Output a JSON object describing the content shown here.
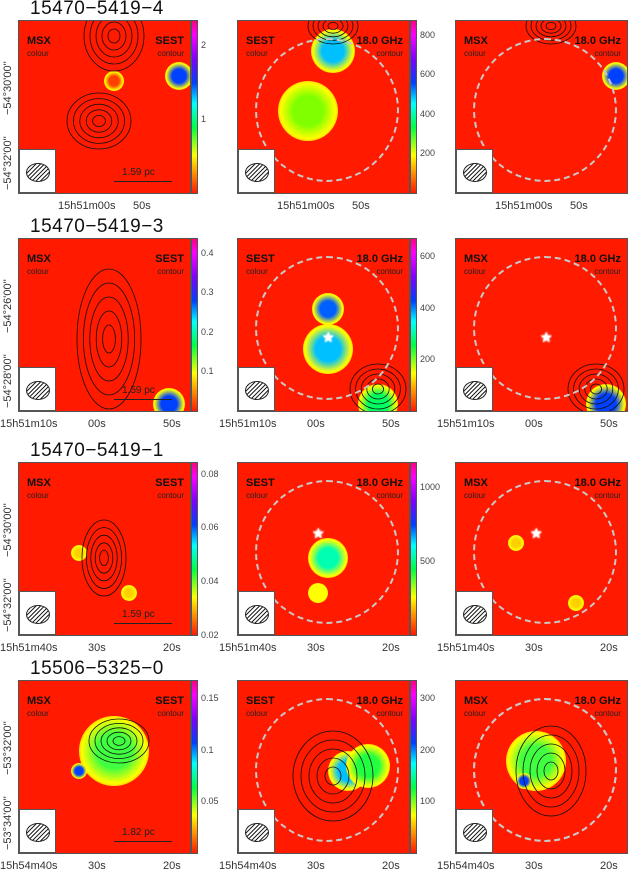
{
  "rows": [
    {
      "title": "15470−5419−4",
      "ra_labels": [
        "15h51m00s",
        "50s"
      ],
      "dec_labels": [
        "−54°30'00''",
        "−54°32'00''"
      ],
      "scale_bar": "1.59 pc",
      "colorbar_msx": [
        "1",
        "2"
      ],
      "colorbar_sest": [
        "200",
        "400",
        "600",
        "800"
      ]
    },
    {
      "title": "15470−5419−3",
      "ra_labels": [
        "15h51m10s",
        "00s",
        "50s"
      ],
      "dec_labels": [
        "−54°26'00''",
        "−54°28'00''"
      ],
      "scale_bar": "1.59 pc",
      "colorbar_msx": [
        "0.1",
        "0.2",
        "0.3",
        "0.4"
      ],
      "colorbar_sest": [
        "200",
        "400",
        "600"
      ]
    },
    {
      "title": "15470−5419−1",
      "ra_labels": [
        "15h51m40s",
        "30s",
        "20s"
      ],
      "dec_labels": [
        "−54°30'00''",
        "−54°32'00''"
      ],
      "scale_bar": "1.59 pc",
      "colorbar_msx": [
        "0.02",
        "0.04",
        "0.06",
        "0.08"
      ],
      "colorbar_sest": [
        "500",
        "1000"
      ]
    },
    {
      "title": "15506−5325−0",
      "ra_labels": [
        "15h54m40s",
        "30s",
        "20s"
      ],
      "dec_labels": [
        "−53°32'00''",
        "−53°34'00''"
      ],
      "scale_bar": "1.82 pc",
      "colorbar_msx": [
        "0.05",
        "0.1",
        "0.15"
      ],
      "colorbar_sest": [
        "100",
        "200",
        "300"
      ]
    }
  ],
  "panels": [
    {
      "colour": "MSX",
      "contour": "SEST",
      "colour_sub": "colour",
      "contour_sub": "contour"
    },
    {
      "colour": "SEST",
      "contour": "18.0 GHz",
      "colour_sub": "colour",
      "contour_sub": "contour"
    },
    {
      "colour": "MSX",
      "contour": "18.0 GHz",
      "colour_sub": "colour",
      "contour_sub": "contour"
    }
  ],
  "colormap": [
    "#ff1a00",
    "#ff8000",
    "#ffff00",
    "#00ff40",
    "#00ffff",
    "#0040ff",
    "#8000ff",
    "#ff00ff"
  ]
}
